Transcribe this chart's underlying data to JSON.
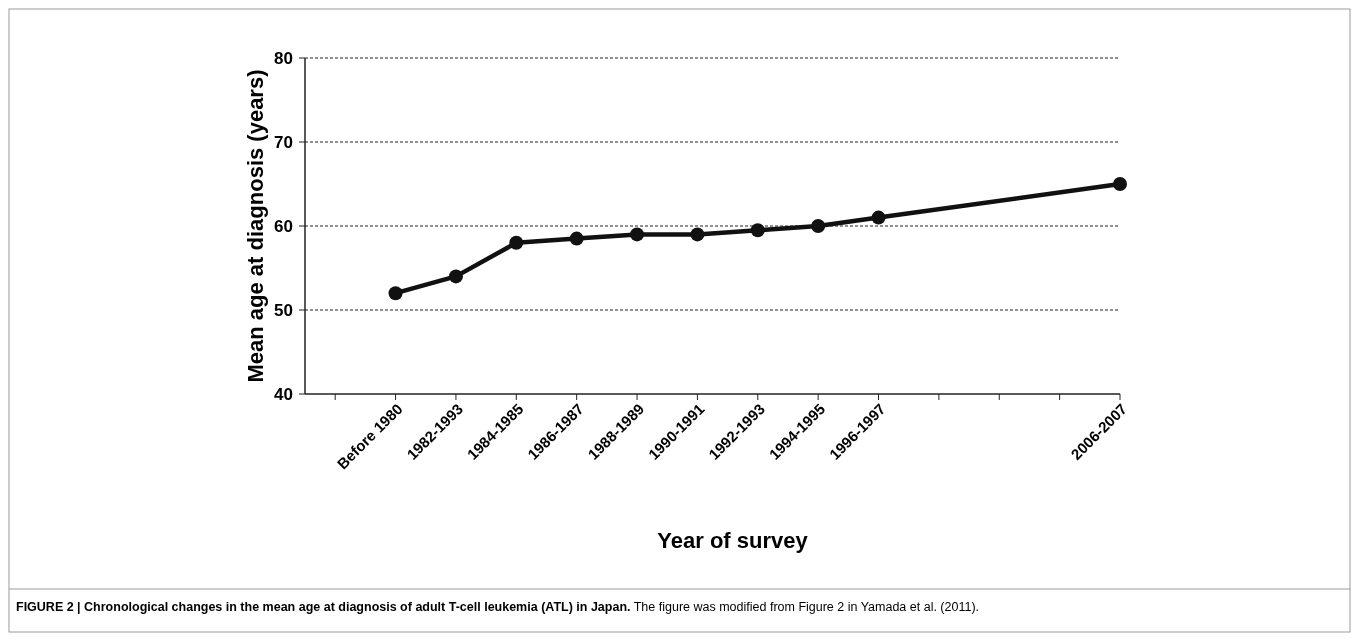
{
  "chart_data": {
    "type": "line",
    "xlabel": "Year of survey",
    "ylabel": "Mean age at diagnosis (years)",
    "categories": [
      null,
      "Before 1980",
      "1982-1993",
      "1984-1985",
      "1986-1987",
      "1988-1989",
      "1990-1991",
      "1992-1993",
      "1994-1995",
      "1996-1997",
      null,
      null,
      null,
      "2006-2007"
    ],
    "series": [
      {
        "color": "#111111",
        "values": [
          null,
          52,
          54,
          58,
          58.5,
          59,
          59,
          59.5,
          60,
          61,
          null,
          null,
          null,
          65
        ]
      }
    ],
    "ylim": [
      40,
      80
    ],
    "yticks": [
      40,
      50,
      60,
      70,
      80
    ],
    "grid": "y",
    "marker": "circle",
    "line_style": "solid",
    "annotations": [
      "FIGURE 2 | Chronological changes in the mean age at diagnosis of adult T-cell leukemia (ATL) in Japan.",
      "The figure was modified from Figure 2 in Yamada et al. (2011)."
    ]
  }
}
